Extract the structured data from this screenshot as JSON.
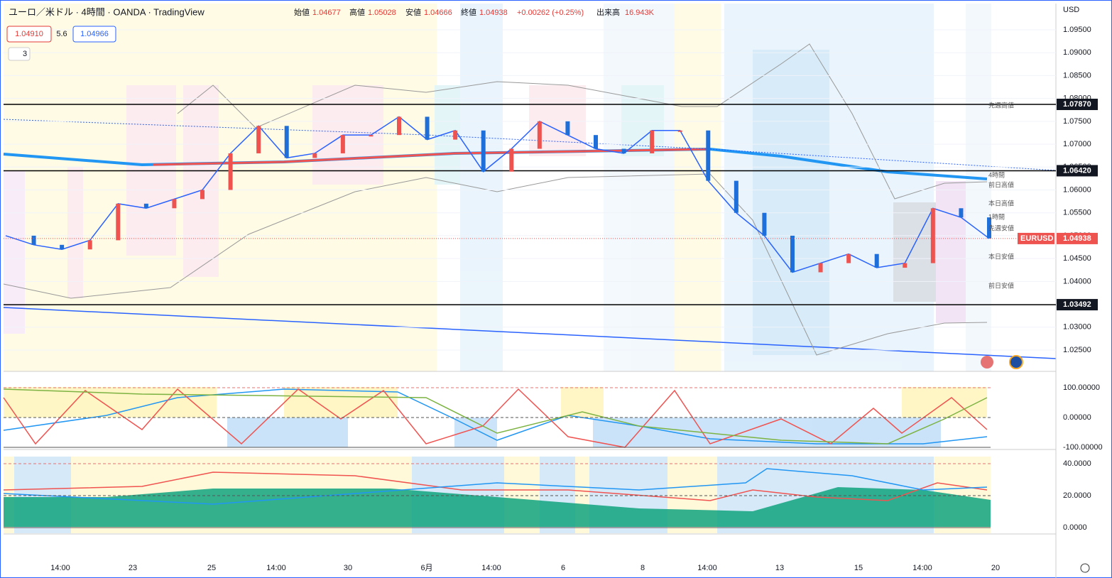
{
  "header": {
    "symbol": "ユーロ／米ドル · 4時間 · OANDA · TradingView",
    "open_label": "始値",
    "open": "1.04677",
    "high_label": "高値",
    "high": "1.05028",
    "low_label": "安値",
    "low": "1.04666",
    "close_label": "終値",
    "close": "1.04938",
    "change": "+0.00262 (+0.25%)",
    "volume_label": "出来高",
    "volume": "16.943K"
  },
  "toolbar": {
    "bid": "1.04910",
    "spread": "5.6",
    "ask": "1.04966",
    "indicators": "3",
    "currency": "USD"
  },
  "price_axis": {
    "ticks": [
      {
        "value": 1.095,
        "label": "1.09500"
      },
      {
        "value": 1.09,
        "label": "1.09000"
      },
      {
        "value": 1.085,
        "label": "1.08500"
      },
      {
        "value": 1.08,
        "label": "1.08000"
      },
      {
        "value": 1.075,
        "label": "1.07500"
      },
      {
        "value": 1.07,
        "label": "1.07000"
      },
      {
        "value": 1.065,
        "label": "1.06500"
      },
      {
        "value": 1.06,
        "label": "1.06000"
      },
      {
        "value": 1.055,
        "label": "1.05500"
      },
      {
        "value": 1.05,
        "label": "1.05000"
      },
      {
        "value": 1.045,
        "label": "1.04500"
      },
      {
        "value": 1.04,
        "label": "1.04000"
      },
      {
        "value": 1.035,
        "label": "1.03500"
      },
      {
        "value": 1.03,
        "label": "1.03000"
      },
      {
        "value": 1.025,
        "label": "1.02500"
      }
    ]
  },
  "levels": [
    {
      "value": 1.0787,
      "label": "1.07870"
    },
    {
      "value": 1.0642,
      "label": "1.06420"
    },
    {
      "value": 1.03492,
      "label": "1.03492"
    }
  ],
  "current": {
    "symbol": "EURUSD",
    "price": {
      "value": 1.04938,
      "label": "1.04938"
    }
  },
  "annotations": [
    "先週高値",
    "4時間",
    "前日高値",
    "本日高値",
    "1時間",
    "先週安値",
    "本日安値",
    "前日安値"
  ],
  "price": {
    "values": [
      1.05,
      1.048,
      1.047,
      1.049,
      1.057,
      1.056,
      1.058,
      1.06,
      1.068,
      1.074,
      1.067,
      1.068,
      1.072,
      1.072,
      1.076,
      1.071,
      1.073,
      1.064,
      1.069,
      1.075,
      1.072,
      1.069,
      1.068,
      1.073,
      1.073,
      1.062,
      1.055,
      1.05,
      1.042,
      1.044,
      1.046,
      1.043,
      1.044,
      1.056,
      1.054,
      1.0494
    ]
  },
  "oscillator_axis": {
    "ticks": [
      {
        "value": 100,
        "label": "100.00000"
      },
      {
        "value": 0,
        "label": "0.00000"
      },
      {
        "value": -100,
        "label": "-100.00000"
      }
    ]
  },
  "adx_axis": {
    "ticks": [
      {
        "value": 40,
        "label": "40.0000"
      },
      {
        "value": 20,
        "label": "20.0000"
      },
      {
        "value": 0,
        "label": "0.0000"
      }
    ]
  },
  "time_axis": [
    "14:00",
    "23",
    "25",
    "14:00",
    "30",
    "6月",
    "14:00",
    "6",
    "8",
    "14:00",
    "13",
    "15",
    "14:00",
    "20"
  ]
}
